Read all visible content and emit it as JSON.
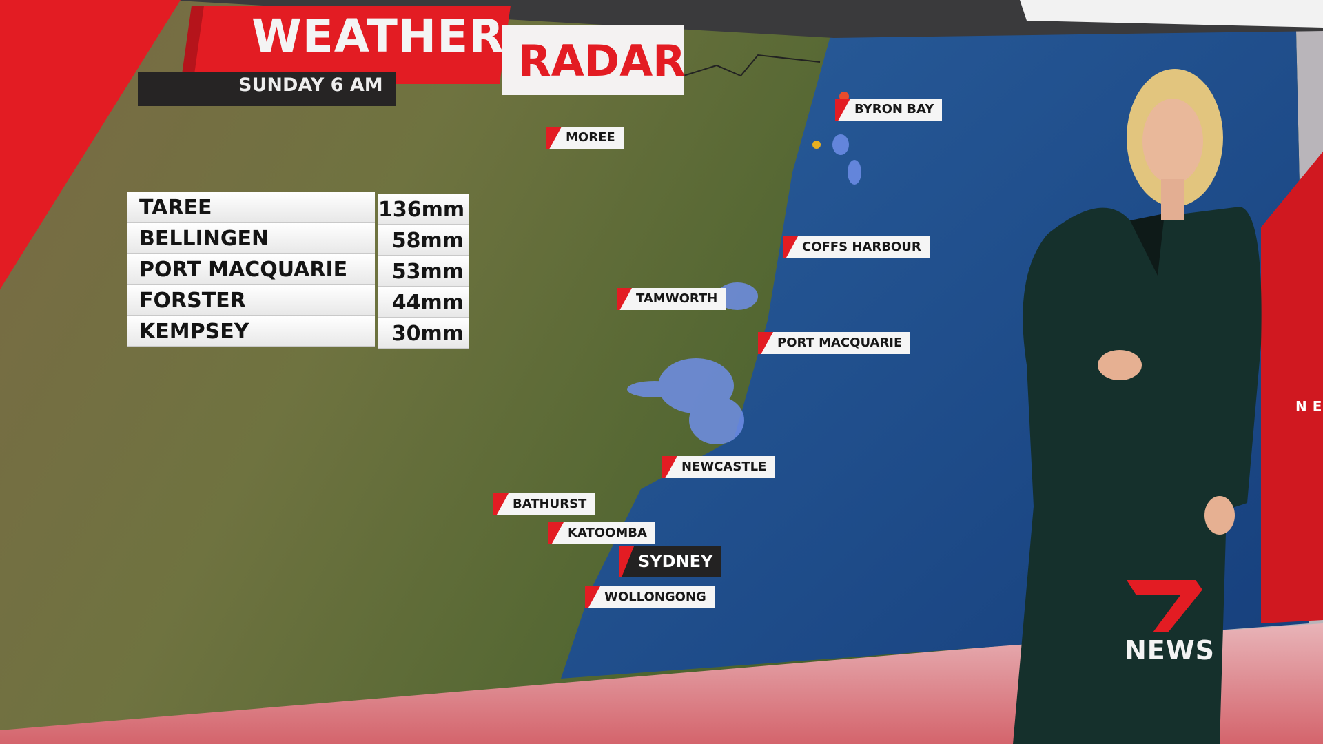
{
  "graphic": {
    "title_primary": "WEATHER",
    "title_secondary": "RADAR",
    "subtitle": "SUNDAY 6 AM"
  },
  "rainfall_table": [
    {
      "place": "TAREE",
      "amount": "136mm"
    },
    {
      "place": "BELLINGEN",
      "amount": "58mm"
    },
    {
      "place": "PORT MACQUARIE",
      "amount": "53mm"
    },
    {
      "place": "FORSTER",
      "amount": "44mm"
    },
    {
      "place": "KEMPSEY",
      "amount": "30mm"
    }
  ],
  "map_labels": {
    "moree": "MOREE",
    "byron_bay": "BYRON BAY",
    "coffs_harbour": "COFFS HARBOUR",
    "tamworth": "TAMWORTH",
    "port_macquarie": "PORT MACQUARIE",
    "newcastle": "NEWCASTLE",
    "bathurst": "BATHURST",
    "katoomba": "KATOOMBA",
    "sydney": "SYDNEY",
    "wollongong": "WOLLONGONG"
  },
  "branding": {
    "logo_text": "NEWS",
    "logo_numeral": "7",
    "background_text": "NE"
  },
  "colors": {
    "brand_red": "#e31c23",
    "ocean": "#1f4f8f",
    "land": "#5f6e37",
    "suit": "#15302c"
  }
}
